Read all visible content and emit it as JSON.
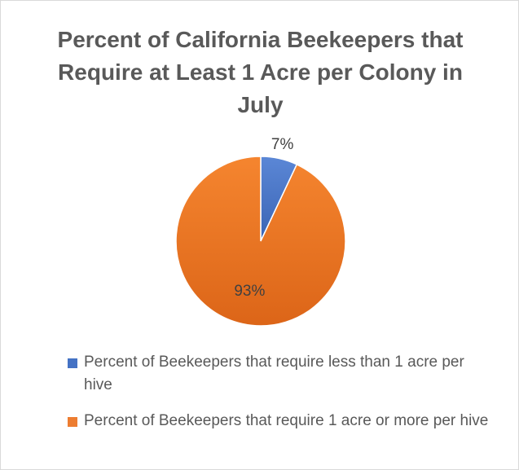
{
  "chart_data": {
    "type": "pie",
    "title": "Percent of California Beekeepers that Require at Least 1 Acre per Colony in July",
    "slices": [
      {
        "label": "Percent of Beekeepers that require less than 1 acre per hive",
        "value": 7,
        "data_label": "7%",
        "color": "#4472c4"
      },
      {
        "label": "Percent of Beekeepers that require 1 acre or more per hive",
        "value": 93,
        "data_label": "93%",
        "color": "#ed7d31"
      }
    ],
    "legend_position": "bottom"
  }
}
